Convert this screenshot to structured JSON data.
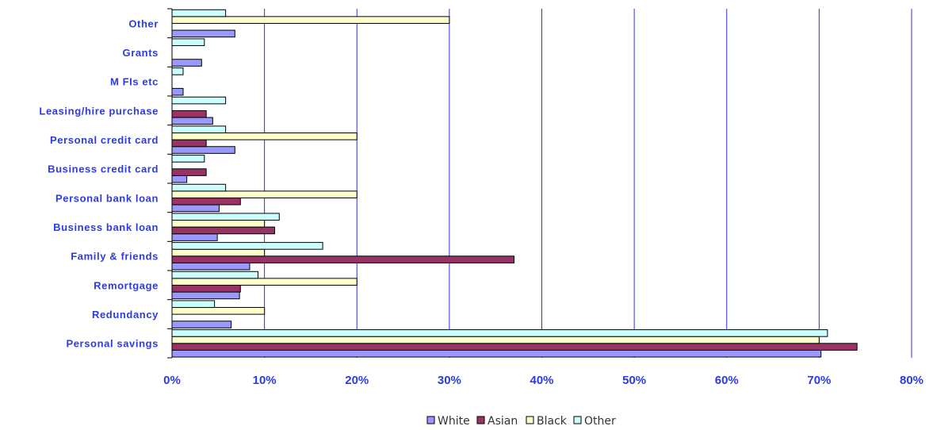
{
  "chart_data": {
    "type": "bar",
    "orientation": "horizontal",
    "categories": [
      "Other",
      "Grants",
      "M FIs etc",
      "Leasing/hire purchase",
      "Personal credit card",
      "Business credit card",
      "Personal bank loan",
      "Business bank loan",
      "Family & friends",
      "Remortgage",
      "Redundancy",
      "Personal savings"
    ],
    "series": [
      {
        "name": "White",
        "color": "#9999ff",
        "values": [
          6.8,
          3.2,
          1.2,
          4.4,
          6.8,
          1.6,
          5.1,
          4.9,
          8.4,
          7.3,
          6.4,
          70.2
        ]
      },
      {
        "name": "Asian",
        "color": "#993366",
        "values": [
          0,
          0,
          0,
          3.7,
          3.7,
          3.7,
          7.4,
          11.1,
          37.0,
          7.4,
          0,
          74.1
        ]
      },
      {
        "name": "Black",
        "color": "#ffffcc",
        "values": [
          30,
          0,
          0,
          0,
          20,
          0,
          20,
          10,
          10,
          20,
          10,
          70
        ]
      },
      {
        "name": "Other",
        "color": "#ccffff",
        "values": [
          5.8,
          3.5,
          1.2,
          5.8,
          5.8,
          3.5,
          5.8,
          11.6,
          16.3,
          9.3,
          4.6,
          70.9
        ]
      }
    ],
    "xlim": [
      0,
      80
    ],
    "x_ticks": [
      "0%",
      "10%",
      "20%",
      "30%",
      "40%",
      "50%",
      "60%",
      "70%",
      "80%"
    ],
    "grid": "vertical",
    "legend_position": "bottom"
  },
  "colors": {
    "label_text": "#2d3be0",
    "gridline": "#3333cc",
    "bar_border": "#000000"
  }
}
